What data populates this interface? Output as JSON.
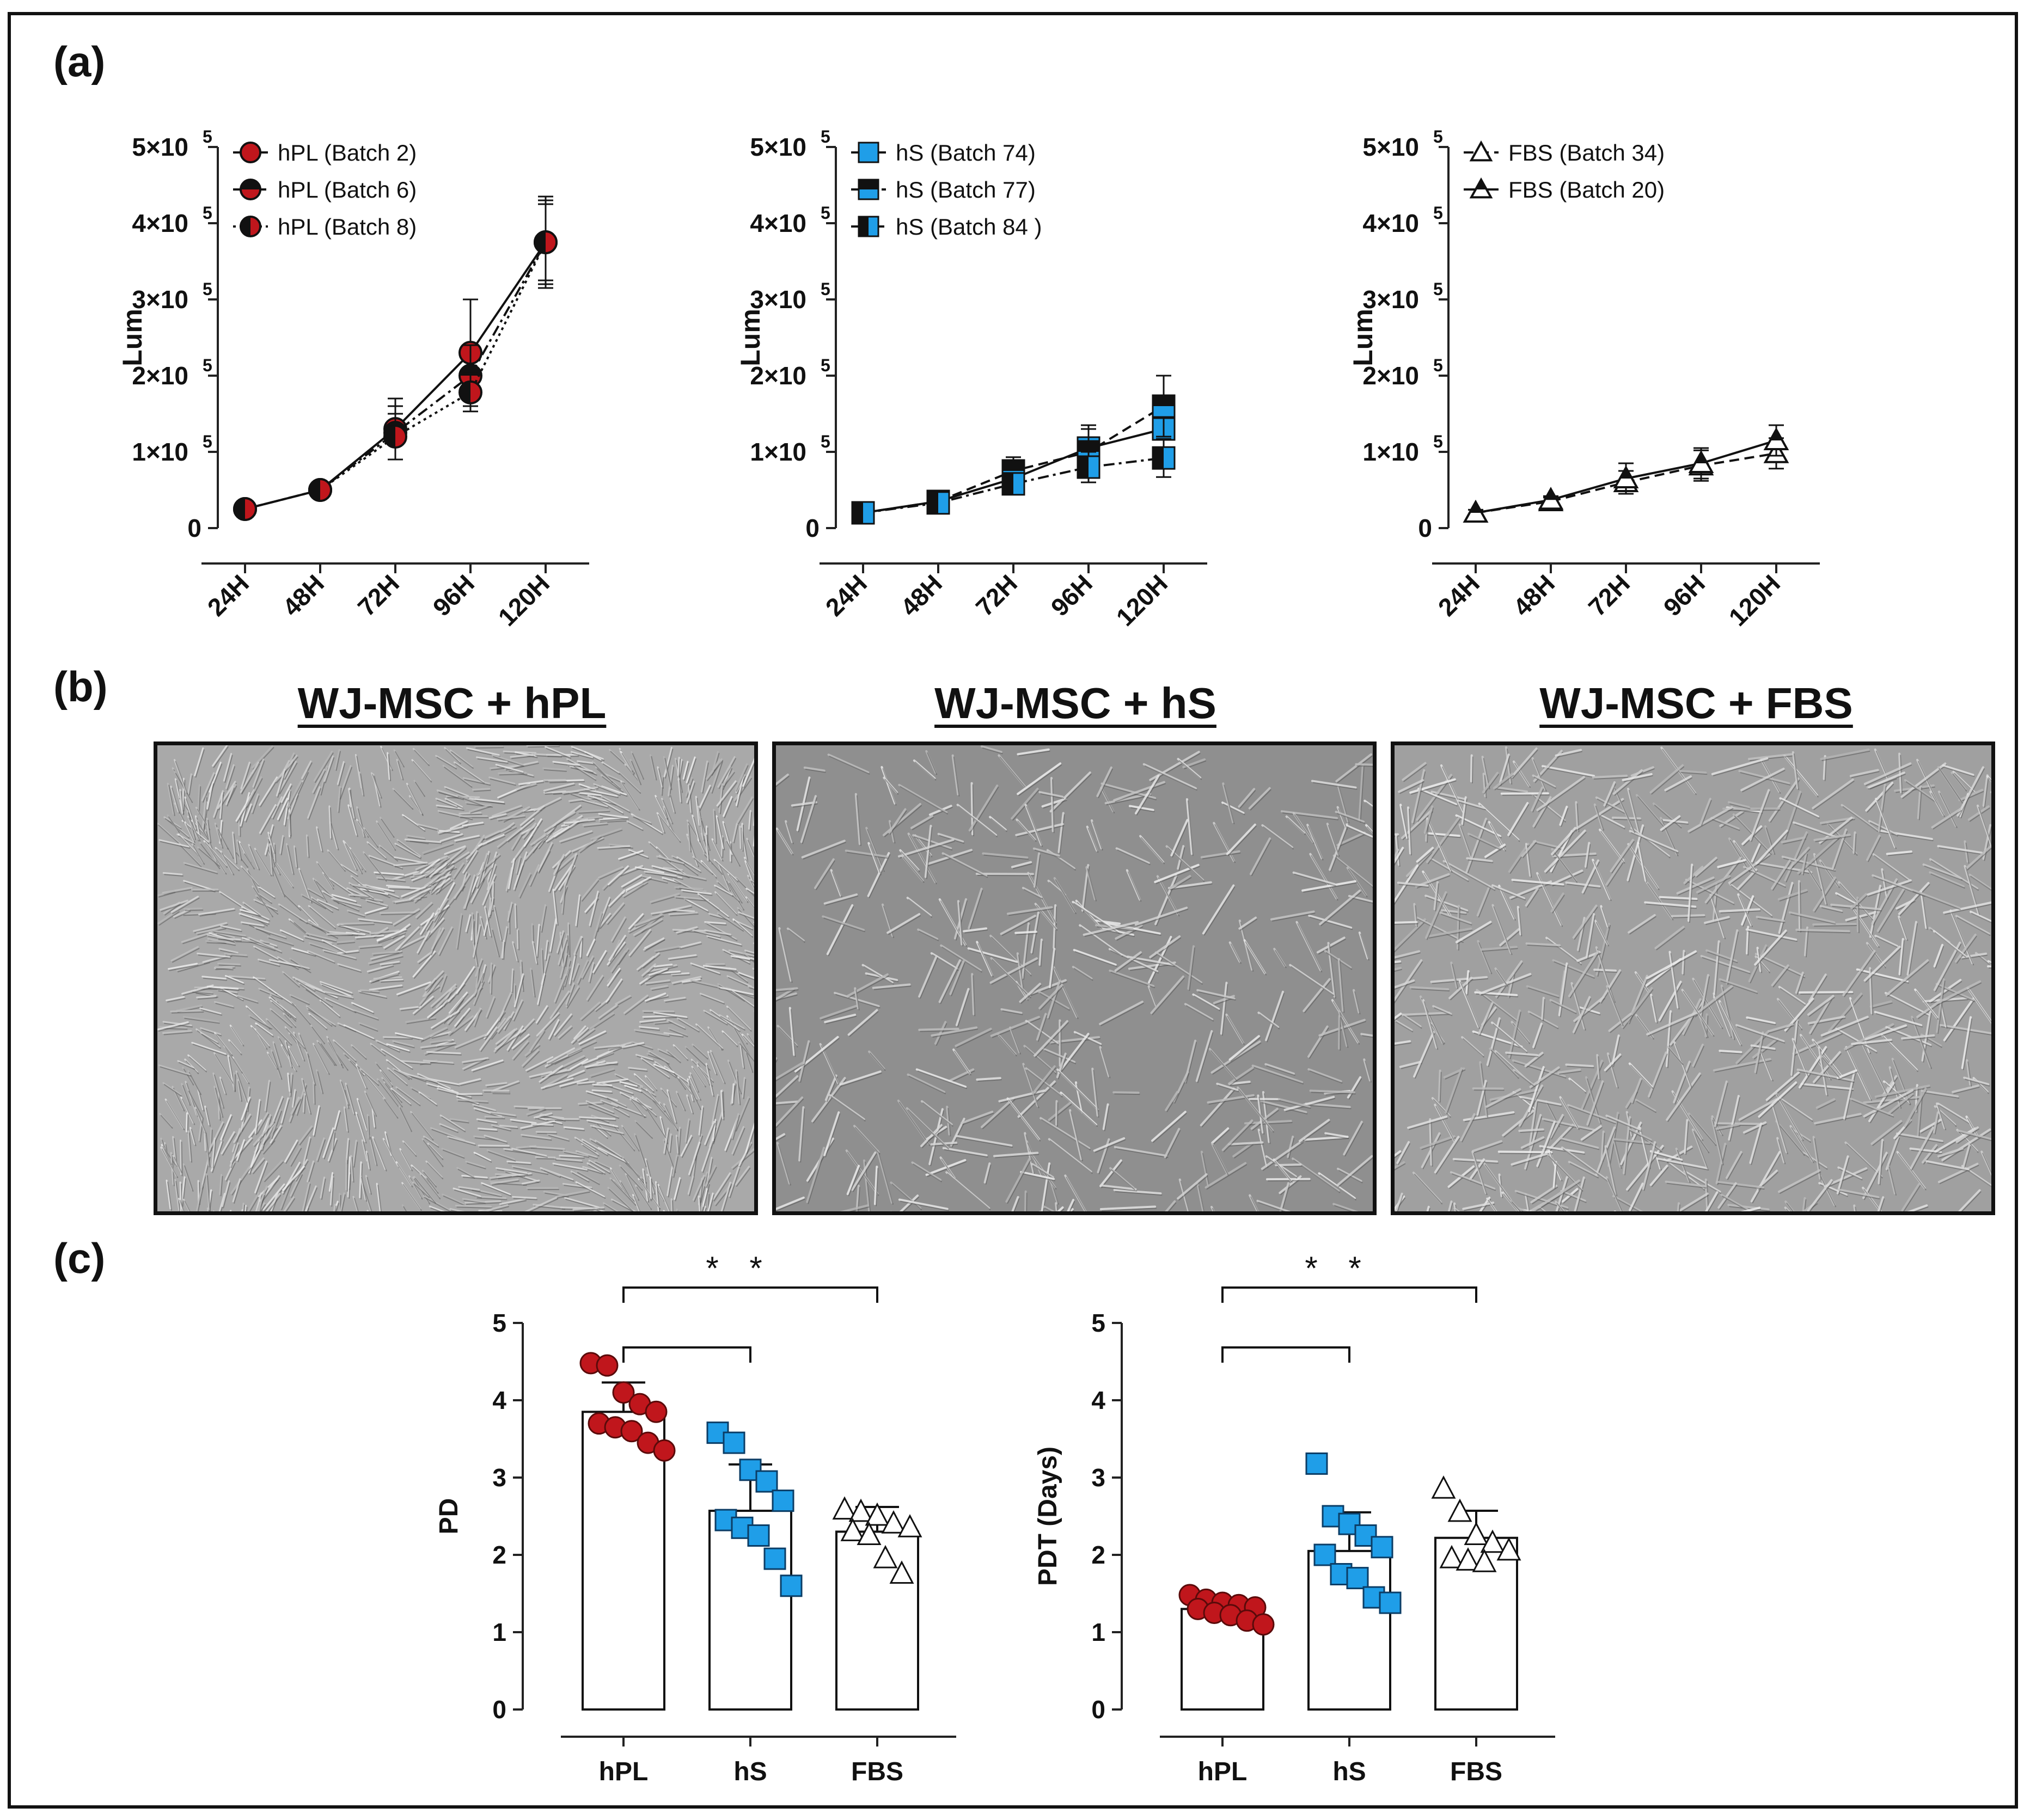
{
  "figure": {
    "panel_labels": {
      "a": "(a)",
      "b": "(b)",
      "c": "(c)"
    },
    "micrographs": [
      {
        "title": "WJ-MSC + hPL",
        "density": "confluent"
      },
      {
        "title": "WJ-MSC + hS",
        "density": "sparse"
      },
      {
        "title": "WJ-MSC + FBS",
        "density": "medium"
      }
    ]
  },
  "chart_data": [
    {
      "type": "line",
      "ylabel": "Lum",
      "categories": [
        "24H",
        "48H",
        "72H",
        "96H",
        "120H"
      ],
      "ylim": [
        0,
        500000
      ],
      "yticks": [
        "0",
        "1×10",
        "2×10",
        "3×10",
        "4×10",
        "5×10"
      ],
      "ytick_exponent": "5",
      "legend_position": "top-left",
      "series": [
        {
          "name": "hPL (Batch 2)",
          "marker": "circle-red",
          "line": "solid",
          "values": [
            25000,
            50000,
            130000,
            230000,
            375000
          ],
          "errors": [
            5000,
            8000,
            40000,
            70000,
            60000
          ]
        },
        {
          "name": "hPL (Batch 6)",
          "marker": "circle-half-black",
          "line": "dashdot",
          "values": [
            25000,
            50000,
            125000,
            200000,
            375000
          ],
          "errors": [
            5000,
            7000,
            35000,
            40000,
            55000
          ]
        },
        {
          "name": "hPL (Batch 8)",
          "marker": "circle-half-side",
          "line": "dotted",
          "values": [
            25000,
            50000,
            120000,
            178000,
            375000
          ],
          "errors": [
            5000,
            7000,
            30000,
            25000,
            50000
          ]
        }
      ],
      "colors": {
        "hpl_red": "#c0161c",
        "black": "#111111"
      }
    },
    {
      "type": "line",
      "ylabel": "Lum",
      "categories": [
        "24H",
        "48H",
        "72H",
        "96H",
        "120H"
      ],
      "ylim": [
        0,
        500000
      ],
      "yticks": [
        "0",
        "1×10",
        "2×10",
        "3×10",
        "4×10",
        "5×10"
      ],
      "ytick_exponent": "5",
      "legend_position": "top-left",
      "series": [
        {
          "name": "hS (Batch 74)",
          "marker": "square-blue",
          "line": "solid",
          "values": [
            20000,
            35000,
            65000,
            105000,
            130000
          ],
          "errors": [
            4000,
            5000,
            15000,
            30000,
            40000
          ]
        },
        {
          "name": "hS (Batch 77)",
          "marker": "square-half-black",
          "line": "dashed",
          "values": [
            20000,
            35000,
            75000,
            100000,
            160000
          ],
          "errors": [
            4000,
            5000,
            18000,
            30000,
            40000
          ]
        },
        {
          "name": "hS (Batch 84 )",
          "marker": "square-half-side",
          "line": "dashdot",
          "values": [
            20000,
            33000,
            58000,
            80000,
            92000
          ],
          "errors": [
            4000,
            5000,
            12000,
            20000,
            25000
          ]
        }
      ],
      "colors": {
        "hs_blue": "#1f9ee8",
        "black": "#111111"
      }
    },
    {
      "type": "line",
      "ylabel": "Lum",
      "categories": [
        "24H",
        "48H",
        "72H",
        "96H",
        "120H"
      ],
      "ylim": [
        0,
        500000
      ],
      "yticks": [
        "0",
        "1×10",
        "2×10",
        "3×10",
        "4×10",
        "5×10"
      ],
      "ytick_exponent": "5",
      "legend_position": "top-left",
      "series": [
        {
          "name": "FBS (Batch 34)",
          "marker": "triangle-open",
          "line": "dashed",
          "values": [
            20000,
            35000,
            60000,
            82000,
            98000
          ],
          "errors": [
            4000,
            5000,
            15000,
            20000,
            20000
          ]
        },
        {
          "name": "FBS (Batch 20)",
          "marker": "triangle-half",
          "line": "solid",
          "values": [
            20000,
            37000,
            65000,
            85000,
            115000
          ],
          "errors": [
            4000,
            5000,
            20000,
            20000,
            20000
          ]
        }
      ],
      "colors": {
        "black": "#111111"
      }
    },
    {
      "type": "bar",
      "ylabel": "PD",
      "categories": [
        "hPL",
        "hS",
        "FBS"
      ],
      "ylim": [
        0,
        5
      ],
      "yticks": [
        "0",
        "1",
        "2",
        "3",
        "4",
        "5"
      ],
      "values": [
        3.85,
        2.57,
        2.3
      ],
      "errors": [
        0.38,
        0.6,
        0.32
      ],
      "points": [
        [
          4.48,
          4.45,
          4.1,
          3.95,
          3.85,
          3.7,
          3.65,
          3.6,
          3.45,
          3.35
        ],
        [
          3.58,
          3.45,
          3.1,
          2.95,
          2.7,
          2.45,
          2.35,
          2.25,
          1.95,
          1.6
        ],
        [
          2.58,
          2.55,
          2.5,
          2.4,
          2.35,
          2.3,
          2.25,
          1.95,
          1.75
        ]
      ],
      "significance": {
        "label": "* *",
        "brackets": [
          "hPL-hS",
          "hPL-FBS"
        ]
      }
    },
    {
      "type": "bar",
      "ylabel": "PDT (Days)",
      "categories": [
        "hPL",
        "hS",
        "FBS"
      ],
      "ylim": [
        0,
        5
      ],
      "yticks": [
        "0",
        "1",
        "2",
        "3",
        "4",
        "5"
      ],
      "values": [
        1.3,
        2.05,
        2.22
      ],
      "errors": [
        0.1,
        0.5,
        0.35
      ],
      "points": [
        [
          1.48,
          1.42,
          1.38,
          1.35,
          1.32,
          1.3,
          1.25,
          1.22,
          1.15,
          1.1
        ],
        [
          3.18,
          2.5,
          2.4,
          2.25,
          2.1,
          2.0,
          1.75,
          1.7,
          1.45,
          1.38
        ],
        [
          2.85,
          2.55,
          2.25,
          2.15,
          2.05,
          1.95,
          1.92,
          1.9
        ]
      ],
      "significance": {
        "label": "* *",
        "brackets": [
          "hPL-hS",
          "hPL-FBS"
        ]
      }
    }
  ]
}
